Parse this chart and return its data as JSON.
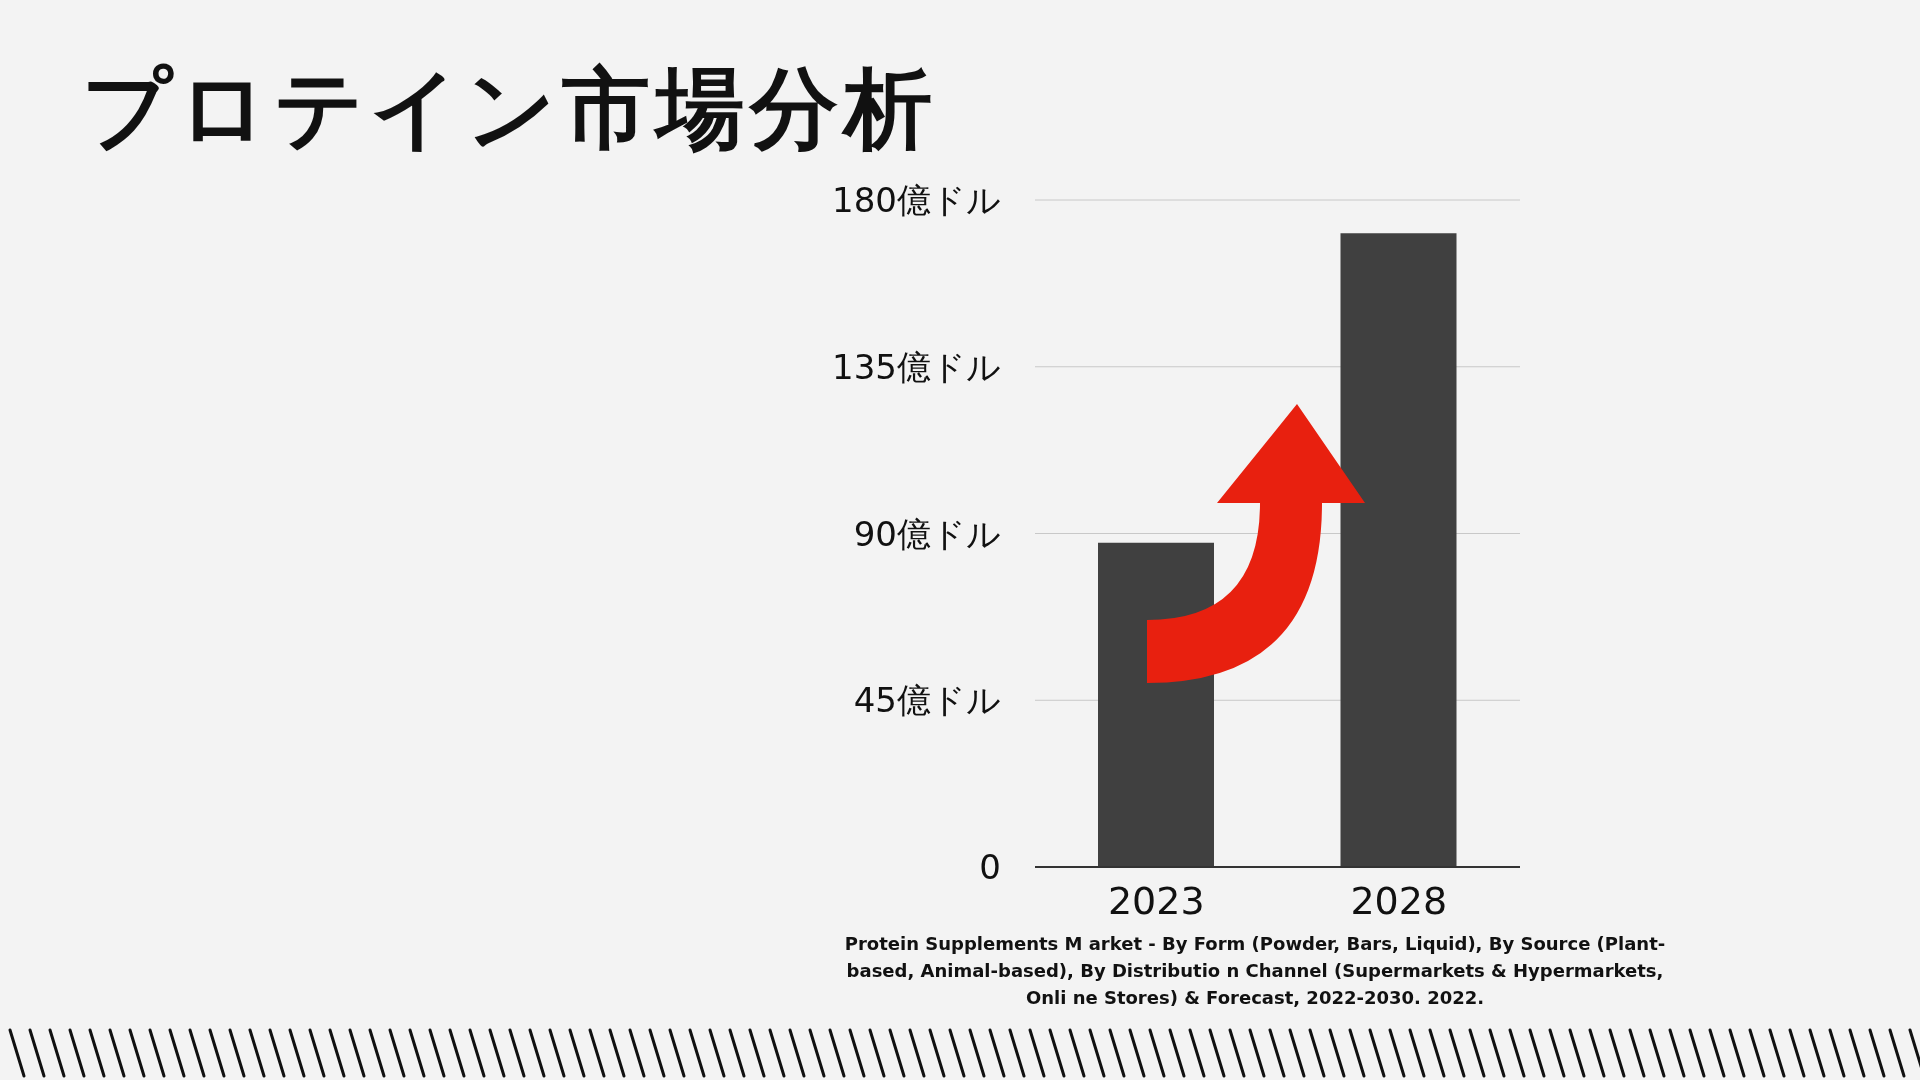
{
  "chart_data": {
    "type": "bar",
    "title": "プロテイン市場分析",
    "categories": [
      "2023",
      "2028"
    ],
    "values": [
      87.5,
      171
    ],
    "color": "#404040",
    "ylim": [
      0,
      180
    ],
    "yticks": [
      0,
      {
        "value": 45,
        "label": "45億ドル"
      },
      {
        "value": 90,
        "label": "90億ドル"
      },
      {
        "value": 135,
        "label": "135億ドル"
      },
      {
        "value": 180,
        "label": "180億ドル"
      }
    ],
    "grid": "y",
    "annotations": [
      "Protein Supplements M arket - By Form (Powder, Bars, Liquid), By Source (Plant-based, Animal-based), By Distributio n Channel (Supermarkets & Hypermarkets, Onli ne Stores) & Forecast, 2022-2030. 2022."
    ]
  }
}
